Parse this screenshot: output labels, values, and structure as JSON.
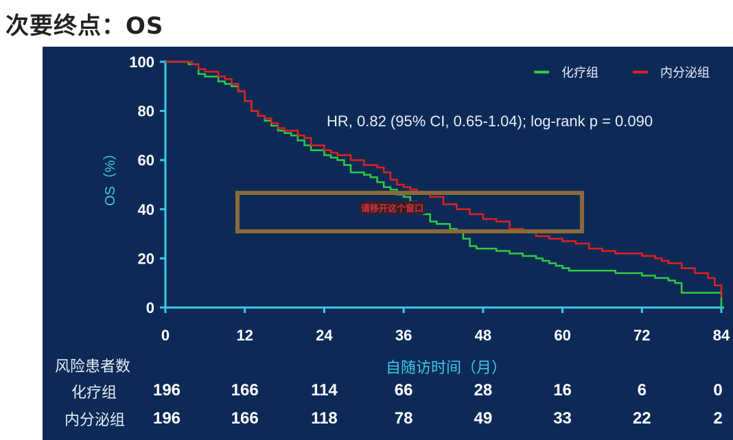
{
  "slide": {
    "title": "次要终点：OS"
  },
  "chart_data": {
    "type": "line",
    "step": true,
    "xlabel": "自随访时间（月）",
    "ylabel": "OS（%）",
    "xlim": [
      0,
      84
    ],
    "ylim": [
      0,
      100
    ],
    "x_ticks": [
      0,
      12,
      24,
      36,
      48,
      60,
      72,
      84
    ],
    "y_ticks": [
      0,
      20,
      40,
      60,
      80,
      100
    ],
    "grid": false,
    "legend_position": "top-right",
    "annotation": "HR, 0.82 (95% CI, 0.65-1.04); log-rank p = 0.090",
    "series": [
      {
        "name": "化疗组",
        "color": "#2ecc40",
        "x": [
          0,
          3.5,
          5,
          6,
          8,
          9,
          10,
          11,
          12,
          13,
          14,
          15,
          16,
          17,
          18,
          19,
          20,
          21,
          22,
          24,
          25,
          26,
          27,
          28,
          30,
          31,
          32,
          33,
          34,
          35,
          36,
          37,
          38,
          39,
          40,
          41,
          43,
          44,
          45,
          46,
          47,
          48,
          50,
          52,
          54,
          56,
          57,
          58,
          59,
          60,
          61,
          62,
          64,
          66,
          68,
          70,
          72,
          73,
          74,
          75,
          76,
          77,
          78,
          79,
          80,
          81,
          82,
          83,
          84
        ],
        "y": [
          100,
          99,
          95,
          94,
          92,
          91,
          90,
          88,
          84,
          80,
          78,
          76,
          74,
          72,
          71,
          70,
          68,
          66,
          64,
          62,
          61,
          60,
          58,
          55,
          54,
          53,
          51,
          49,
          48,
          46,
          45,
          43,
          42,
          38,
          35,
          34,
          32,
          31,
          28,
          25,
          24,
          24,
          23,
          22,
          21,
          20,
          19,
          18,
          17,
          16,
          15,
          15,
          15,
          15,
          14,
          14,
          13,
          13,
          12,
          12,
          11,
          10,
          6,
          6,
          6,
          6,
          6,
          6,
          0
        ]
      },
      {
        "name": "内分泌组",
        "color": "#e0201e",
        "x": [
          0,
          4,
          5,
          6,
          8,
          9,
          10,
          11,
          12,
          13,
          14,
          15,
          16,
          17,
          18,
          20,
          21,
          22,
          24,
          25,
          26,
          28,
          30,
          32,
          33,
          34,
          35,
          36,
          37,
          38,
          40,
          42,
          44,
          46,
          48,
          50,
          52,
          54,
          56,
          58,
          60,
          62,
          64,
          66,
          68,
          70,
          72,
          74,
          75,
          76,
          78,
          80,
          82,
          83,
          84
        ],
        "y": [
          100,
          99,
          97,
          96,
          94,
          93,
          91,
          88,
          84,
          80,
          78,
          77,
          75,
          73,
          72,
          70,
          69,
          66,
          64,
          63,
          62,
          60,
          58,
          57,
          55,
          52,
          50,
          49,
          48,
          47,
          45,
          42,
          40,
          38,
          36,
          35,
          32,
          31,
          29,
          28,
          27,
          26,
          24,
          23,
          22,
          22,
          21,
          20,
          19,
          18,
          16,
          14,
          12,
          9,
          4
        ]
      }
    ]
  },
  "risk_table": {
    "header": "风险患者数",
    "times": [
      0,
      12,
      24,
      36,
      48,
      60,
      72,
      84
    ],
    "rows": [
      {
        "label": "化疗组",
        "values": [
          196,
          166,
          114,
          66,
          28,
          16,
          6,
          0
        ]
      },
      {
        "label": "内分泌组",
        "values": [
          196,
          166,
          118,
          78,
          49,
          33,
          22,
          2
        ]
      }
    ]
  },
  "overlay": {
    "text": "请移开这个窗口"
  }
}
